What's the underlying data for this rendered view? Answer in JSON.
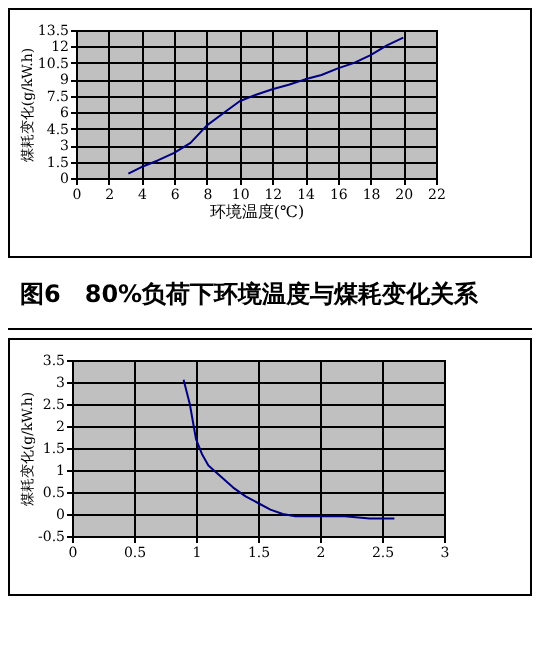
{
  "chart_data": [
    {
      "type": "line",
      "title": "图6　80%负荷下环境温度与煤耗变化关系",
      "xlabel": "环境温度(℃)",
      "ylabel": "煤耗变化(g/kW.h)",
      "x": [
        3.2,
        4,
        5,
        6,
        7,
        8,
        9,
        10,
        11,
        12,
        13,
        14,
        15,
        16,
        17,
        18,
        19,
        20
      ],
      "series": [
        {
          "color": "#000080",
          "values": [
            0.4,
            1,
            1.6,
            2.3,
            3.2,
            4.8,
            5.9,
            7,
            7.6,
            8.1,
            8.5,
            9,
            9.4,
            10,
            10.5,
            11.2,
            12.1,
            12.8
          ]
        }
      ],
      "xlim": [
        0,
        22
      ],
      "xticks": [
        0,
        2,
        4,
        6,
        8,
        10,
        12,
        14,
        16,
        18,
        20,
        22
      ],
      "ylim": [
        0,
        13.5
      ],
      "yticks": [
        0,
        1.5,
        3,
        4.5,
        6,
        7.5,
        9,
        10.5,
        12,
        13.5
      ],
      "grid": true,
      "legend": false,
      "marker": "none"
    },
    {
      "type": "line",
      "ylabel": "煤耗变化(g/kW.h)",
      "x": [
        0.9,
        0.95,
        1,
        1.05,
        1.1,
        1.2,
        1.3,
        1.4,
        1.5,
        1.6,
        1.7,
        1.8,
        2,
        2.2,
        2.4,
        2.6
      ],
      "series": [
        {
          "color": "#000080",
          "values": [
            3.05,
            2.5,
            1.7,
            1.35,
            1.1,
            0.85,
            0.6,
            0.4,
            0.25,
            0.1,
            0,
            -0.05,
            -0.05,
            -0.05,
            -0.1,
            -0.1
          ]
        }
      ],
      "xlim": [
        0,
        3
      ],
      "xticks": [
        0,
        0.5,
        1,
        1.5,
        2,
        2.5,
        3
      ],
      "ylim": [
        -0.5,
        3.5
      ],
      "yticks": [
        -0.5,
        0,
        0.5,
        1,
        1.5,
        2,
        2.5,
        3,
        3.5
      ],
      "grid": true,
      "legend": false,
      "marker": "none"
    }
  ]
}
